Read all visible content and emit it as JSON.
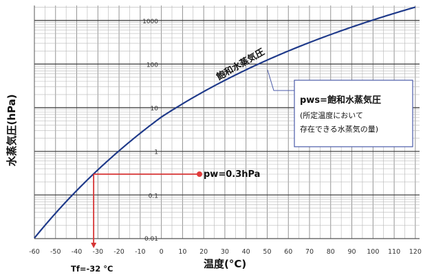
{
  "chart_data": {
    "type": "line",
    "xlabel": "温度(°C)",
    "ylabel": "水蒸気圧(hPa)",
    "y_scale": "log",
    "xlim": [
      -60,
      122
    ],
    "ylim": [
      0.01,
      2200
    ],
    "x_ticks": [
      -60,
      -50,
      -40,
      -30,
      -20,
      -10,
      0,
      10,
      20,
      30,
      40,
      50,
      60,
      70,
      80,
      90,
      100,
      110,
      120
    ],
    "x_tick_labels": [
      "-60",
      "-50",
      "-40",
      "-30",
      "-20",
      "-10",
      "0",
      "10",
      "20",
      "30",
      "40",
      "50",
      "60",
      "70",
      "80",
      "90",
      "100",
      "110",
      "120"
    ],
    "y_ticks": [
      1000,
      100,
      10,
      1,
      0.1,
      0.01
    ],
    "y_tick_labels": [
      "1000",
      "100",
      "10",
      "1",
      "0.1",
      "0.01"
    ],
    "grid": true,
    "series": [
      {
        "name": "飽和水蒸気圧",
        "x": [
          -60,
          -50,
          -40,
          -30,
          -20,
          -10,
          0,
          10,
          20,
          30,
          40,
          50,
          60,
          70,
          80,
          90,
          100,
          110,
          120
        ],
        "y": [
          0.011,
          0.039,
          0.128,
          0.38,
          1.03,
          2.6,
          6.11,
          12.3,
          23.4,
          42.4,
          73.8,
          123,
          199,
          312,
          474,
          701,
          1013,
          1433,
          1985
        ]
      }
    ],
    "annotations": {
      "curve_label": "飽和水蒸気圧",
      "pws_title": "pws=飽和水蒸気圧",
      "pws_note_line1": "(所定温度において",
      "pws_note_line2": "存在できる水蒸気の量)",
      "pw_label": "pw=0.3hPa",
      "pw_value": 0.3,
      "tf_label": "Tf=-32 °C",
      "tf_value": -32
    }
  }
}
